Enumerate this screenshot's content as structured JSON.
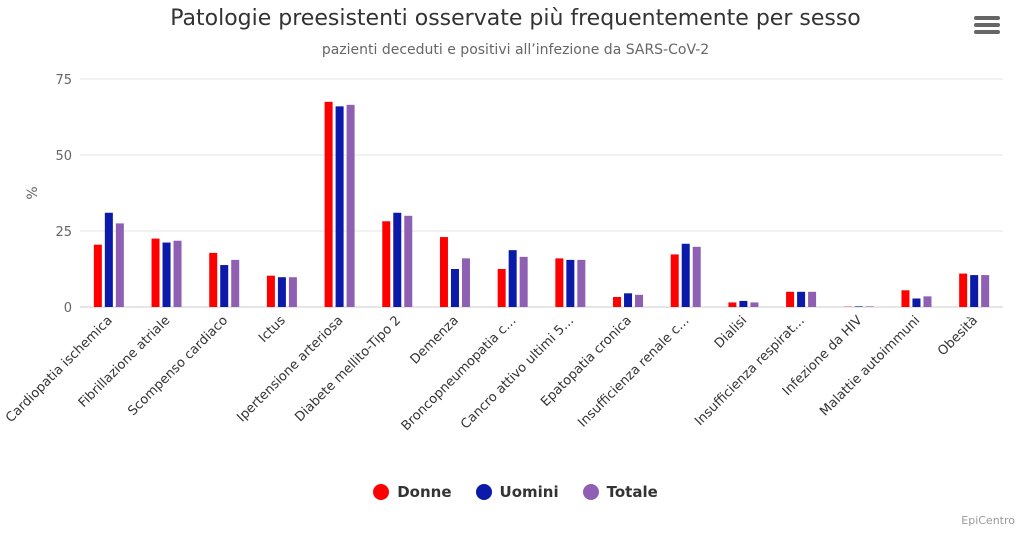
{
  "chart_data": {
    "type": "bar",
    "title": "Patologie preesistenti osservate più frequentemente per sesso",
    "subtitle": "pazienti deceduti e positivi all’infezione da SARS-CoV-2",
    "ylabel": "%",
    "ylim": [
      0,
      75
    ],
    "yticks": [
      0,
      25,
      50,
      75
    ],
    "grid": true,
    "legend_position": "bottom",
    "categories": [
      "Cardiopatia ischemica",
      "Fibrillazione atriale",
      "Scompenso cardiaco",
      "Ictus",
      "Ipertensione arteriosa",
      "Diabete mellito-Tipo 2",
      "Demenza",
      "Broncopneumopatia c…",
      "Cancro attivo ultimi 5…",
      "Epatopatia cronica",
      "Insufficienza renale c…",
      "Dialisi",
      "Insufficienza respirat…",
      "Infezione da HIV",
      "Malattie autoimmuni",
      "Obesità"
    ],
    "series": [
      {
        "name": "Donne",
        "color": "#ff0000",
        "values": [
          20.5,
          22.5,
          17.8,
          10.3,
          67.5,
          28.2,
          23.0,
          12.5,
          16.0,
          3.3,
          17.3,
          1.5,
          5.0,
          0.1,
          5.5,
          11.0
        ]
      },
      {
        "name": "Uomini",
        "color": "#0b1aa8",
        "values": [
          31.0,
          21.2,
          13.8,
          9.8,
          66.0,
          31.0,
          12.5,
          18.7,
          15.5,
          4.5,
          20.8,
          2.0,
          5.0,
          0.2,
          2.8,
          10.5
        ]
      },
      {
        "name": "Totale",
        "color": "#8e5fb2",
        "values": [
          27.5,
          21.8,
          15.5,
          9.8,
          66.5,
          30.0,
          16.0,
          16.5,
          15.5,
          4.0,
          19.8,
          1.5,
          5.0,
          0.2,
          3.5,
          10.5
        ]
      }
    ]
  },
  "credits": "EpiCentro",
  "menu_icon": "hamburger-menu-icon"
}
